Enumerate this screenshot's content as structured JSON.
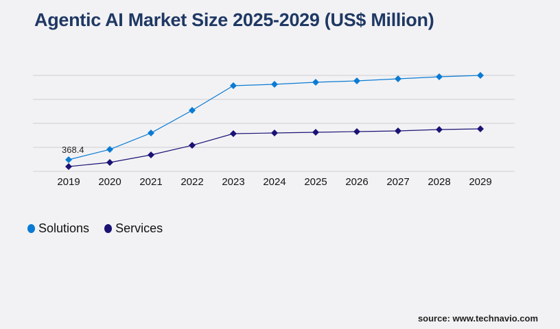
{
  "chart_data": {
    "type": "line",
    "title": "Agentic AI Market Size 2025-2029 (US$ Million)",
    "x": [
      "2019",
      "2020",
      "2021",
      "2022",
      "2023",
      "2024",
      "2025",
      "2026",
      "2027",
      "2028",
      "2029"
    ],
    "series": [
      {
        "name": "Solutions",
        "color": "#0a7bd4",
        "values": [
          368.4,
          693,
          1213,
          1929,
          2709,
          2752,
          2817,
          2860,
          2925,
          2990,
          3034
        ]
      },
      {
        "name": "Services",
        "color": "#1a1275",
        "values": [
          152,
          282,
          520,
          823,
          1192,
          1213,
          1235,
          1257,
          1278,
          1322,
          1343
        ]
      }
    ],
    "data_labels": [
      {
        "series": "Solutions",
        "x": "2019",
        "text": "368.4"
      }
    ],
    "ylim": [
      0,
      3034
    ],
    "grid": true,
    "y_tick_labels_shown": false,
    "legend": "bottom-left"
  },
  "source": "source: www.technavio.com"
}
